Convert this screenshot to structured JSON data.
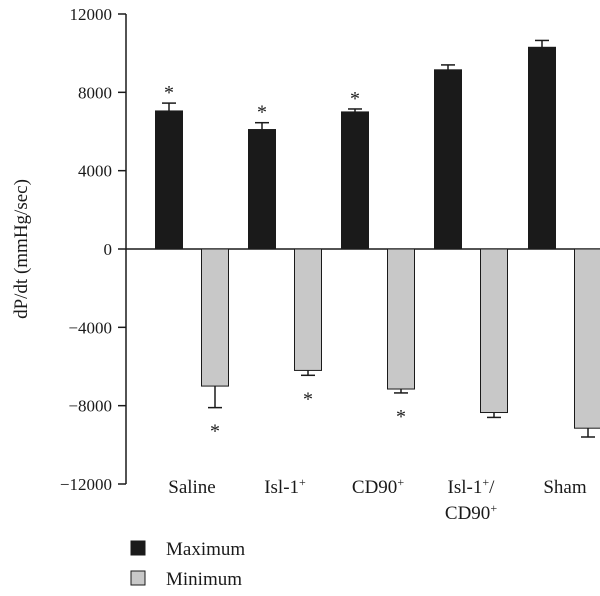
{
  "chart_data": {
    "type": "bar",
    "title": "",
    "ylabel": "dP/dt (mmHg/sec)",
    "xlabel": "",
    "ylim": [
      -12000,
      12000
    ],
    "yticks": [
      12000,
      8000,
      4000,
      0,
      -4000,
      -8000,
      -12000
    ],
    "ytick_labels": [
      "12000",
      "8000",
      "4000",
      "0",
      "−4000",
      "−8000",
      "−12000"
    ],
    "categories": [
      {
        "lines": [
          {
            "text": "Saline",
            "sup": ""
          }
        ]
      },
      {
        "lines": [
          {
            "text": "Isl-1",
            "sup": "+"
          }
        ]
      },
      {
        "lines": [
          {
            "text": "CD90",
            "sup": "+"
          }
        ]
      },
      {
        "lines": [
          {
            "text": "Isl-1",
            "sup": "+",
            "tail": "/"
          },
          {
            "text": "CD90",
            "sup": "+"
          }
        ]
      },
      {
        "lines": [
          {
            "text": "Sham",
            "sup": ""
          }
        ]
      }
    ],
    "series": [
      {
        "name": "Maximum",
        "color": "#1a1a1a",
        "values": [
          7050,
          6100,
          7000,
          9150,
          10300
        ],
        "errors": [
          400,
          350,
          150,
          250,
          350
        ],
        "significance": [
          "*",
          "*",
          "*",
          "",
          ""
        ]
      },
      {
        "name": "Minimum",
        "color": "#c8c8c8",
        "values": [
          -7000,
          -6200,
          -7150,
          -8350,
          -9150
        ],
        "errors": [
          1100,
          250,
          200,
          250,
          450
        ],
        "significance": [
          "*",
          "*",
          "*",
          "",
          ""
        ]
      }
    ],
    "legend": {
      "position": "bottom-left"
    },
    "grid": false
  }
}
